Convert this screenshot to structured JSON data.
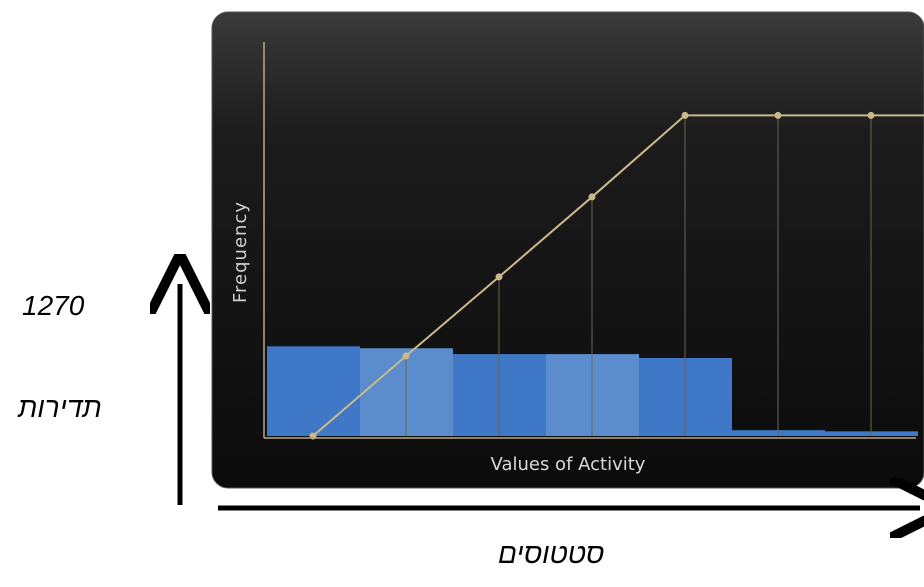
{
  "outer_labels": {
    "count": "1270",
    "frequency_he": "תדירות",
    "status_he": "סטטוסים"
  },
  "chart_data": {
    "type": "bar",
    "xlabel": "Values of Activity",
    "ylabel": "Frequency",
    "ylim": [
      0,
      100
    ],
    "categories": [
      "",
      "",
      "",
      "",
      "",
      "",
      ""
    ],
    "values": [
      23,
      22.5,
      21,
      21,
      20,
      1.5,
      1.2
    ],
    "cumulative_line": [
      0,
      20.5,
      40.8,
      61.3,
      82.2,
      82.2,
      82.2,
      82.2
    ],
    "grid": false,
    "colors": {
      "panel": "#111111",
      "bar_dark": "#3f78c6",
      "bar_light": "#5b8ccc",
      "line": "#cbb98a",
      "axis": "#b7a98a",
      "label": "#d9d9d9"
    }
  }
}
